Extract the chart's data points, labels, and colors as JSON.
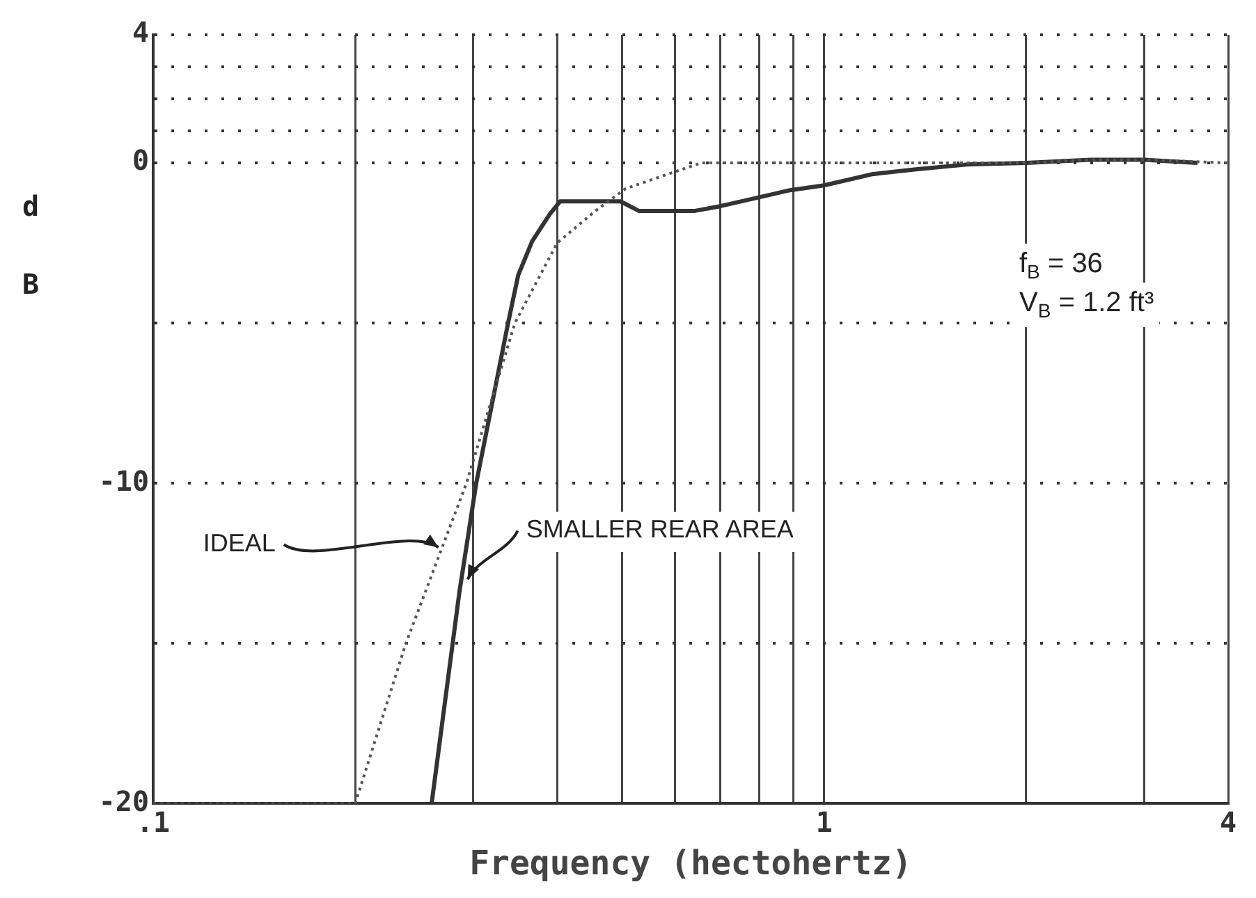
{
  "chart_data": {
    "type": "line",
    "xlabel": "Frequency (hectohertz)",
    "ylabel": "dB",
    "log": "x",
    "xlim": [
      0.1,
      4
    ],
    "ylim": [
      -20,
      4
    ],
    "xticks": [
      {
        "value": 0.1,
        "label": ".1"
      },
      {
        "value": 0.2,
        "label": null
      },
      {
        "value": 0.3,
        "label": null
      },
      {
        "value": 0.4,
        "label": null
      },
      {
        "value": 0.5,
        "label": null
      },
      {
        "value": 0.6,
        "label": null
      },
      {
        "value": 0.7,
        "label": null
      },
      {
        "value": 0.8,
        "label": null
      },
      {
        "value": 0.9,
        "label": null
      },
      1,
      {
        "value": 2,
        "label": null
      },
      {
        "value": 3,
        "label": null
      },
      4
    ],
    "yticks": [
      -20,
      {
        "value": -15,
        "label": null
      },
      -10,
      {
        "value": -5,
        "label": null
      },
      0,
      {
        "value": 1,
        "label": null
      },
      {
        "value": 2,
        "label": null
      },
      {
        "value": 3,
        "label": null
      },
      4
    ],
    "grid": true,
    "legend": false,
    "marker": "none",
    "series": [
      {
        "color": "#555555",
        "line_style": "dotted",
        "x": [
          0.1,
          0.2,
          0.238,
          0.293,
          0.346,
          0.4,
          0.456,
          0.506,
          0.585,
          0.655,
          1,
          2,
          2.5,
          3,
          4
        ],
        "values": [
          -20,
          -20,
          -15,
          -10,
          -5,
          -2.5,
          -1.5,
          -0.8,
          -0.35,
          0,
          0,
          0,
          0.1,
          0.1,
          0
        ]
      },
      {
        "color": "#333333",
        "line_style": "solid",
        "x": [
          0.26,
          0.286,
          0.303,
          0.338,
          0.35,
          0.367,
          0.39,
          0.404,
          0.497,
          0.53,
          0.64,
          0.7,
          0.79,
          0.89,
          1,
          1.18,
          1.37,
          1.63,
          2,
          2.5,
          3,
          3.6
        ],
        "values": [
          -20,
          -13.4,
          -10,
          -5,
          -3.5,
          -2.45,
          -1.6,
          -1.2,
          -1.2,
          -1.5,
          -1.5,
          -1.35,
          -1.1,
          -0.85,
          -0.7,
          -0.35,
          -0.2,
          -0.05,
          0,
          0.1,
          0.1,
          0
        ]
      }
    ],
    "annotations": [
      {
        "text": "IDEAL",
        "x": 0.27,
        "y": -12
      },
      {
        "text": "SMALLER REAR AREA",
        "x": 0.29,
        "y": -13
      },
      "f$_{B}$ = 36",
      "V$_{B}$ = 1.2 ft³"
    ]
  }
}
